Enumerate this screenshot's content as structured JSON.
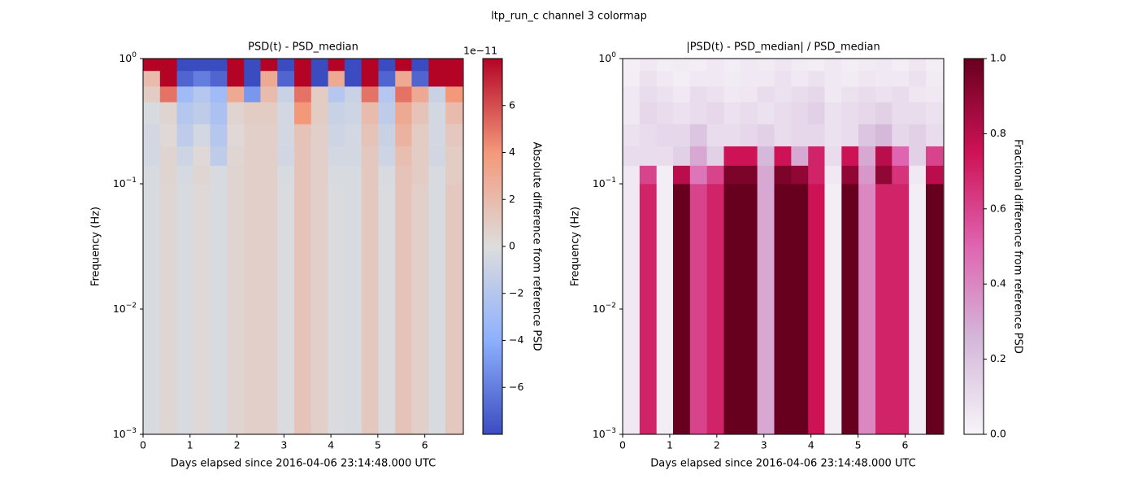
{
  "title": "ltp_run_c channel 3 colormap",
  "chart_data": [
    {
      "type": "heatmap",
      "title": "PSD(t) - PSD_median",
      "x_label": "Days elapsed since 2016-04-06 23:14:48.000 UTC",
      "y_label": "Frequency (Hz)",
      "xlim": [
        0,
        6.82
      ],
      "xticks": [
        0,
        1,
        2,
        3,
        4,
        5,
        6
      ],
      "ylim": [
        0.001,
        1
      ],
      "y_log": true,
      "yticks": [
        {
          "value": 0.001,
          "label": "10",
          "exponent": "−3"
        },
        {
          "value": 0.01,
          "label": "10",
          "exponent": "−2"
        },
        {
          "value": 0.1,
          "label": "10",
          "exponent": "−1"
        },
        {
          "value": 1,
          "label": "10",
          "exponent": "0"
        }
      ],
      "x_edges": [
        0,
        0.36,
        0.72,
        1.07,
        1.43,
        1.79,
        2.15,
        2.5,
        2.86,
        3.22,
        3.58,
        3.94,
        4.29,
        4.65,
        5.01,
        5.37,
        5.72,
        6.08,
        6.44,
        6.8
      ],
      "y_edges": [
        0.001,
        0.1,
        0.14,
        0.2,
        0.3,
        0.45,
        0.6,
        0.8,
        1
      ],
      "z": [
        [
          -0.3,
          0.4,
          -0.3,
          0.3,
          -0.3,
          0.5,
          0.8,
          0.8,
          -0.2,
          1.5,
          0.8,
          -0.2,
          -0.3,
          1.2,
          -0.2,
          1.5,
          0.8,
          -0.3,
          1.2
        ],
        [
          -0.3,
          0.5,
          -0.4,
          0.4,
          -0.3,
          0.5,
          0.8,
          0.8,
          -0.3,
          1.5,
          0.8,
          -0.3,
          -0.3,
          1.2,
          -0.3,
          1.5,
          1,
          -0.3,
          1
        ],
        [
          -0.5,
          0.5,
          -0.8,
          0.3,
          -1.5,
          0.4,
          0.8,
          0.8,
          -0.6,
          1.5,
          0.8,
          -0.5,
          -0.5,
          1.2,
          -0.8,
          1.8,
          1,
          -0.6,
          1
        ],
        [
          -0.5,
          0.3,
          -1.5,
          -0.5,
          -2,
          0.3,
          0.8,
          0.8,
          -0.5,
          1.5,
          0.8,
          -0.8,
          -0.5,
          1.5,
          -1,
          2.5,
          1,
          -0.5,
          1.2
        ],
        [
          -0.3,
          0.5,
          -2,
          -1.5,
          -2.5,
          0.5,
          1,
          1,
          -0.5,
          4,
          1,
          -1,
          -0.8,
          2,
          -1.5,
          3,
          1.5,
          -0.5,
          2
        ],
        [
          1,
          5,
          -3,
          -2,
          -3,
          3,
          -5,
          2,
          -1,
          5,
          1,
          -2,
          -1,
          5,
          -2,
          5,
          3,
          -1,
          4
        ],
        [
          2,
          8,
          -7,
          -6,
          -7,
          8,
          -8,
          3,
          -7,
          8,
          -8,
          3,
          -8,
          8,
          -7,
          3,
          -7,
          8,
          8
        ],
        [
          8,
          8,
          -8,
          -8,
          -8,
          8,
          -8,
          8,
          -8,
          8,
          -8,
          8,
          -8,
          8,
          -8,
          8,
          -8,
          8,
          8
        ]
      ],
      "colormap": [
        "#3b4cc0",
        "#8db0fe",
        "#dddddd",
        "#f4987a",
        "#b40426"
      ],
      "clim": [
        -8,
        8
      ],
      "cticks": [
        {
          "value": -6,
          "label": "−6"
        },
        {
          "value": -4,
          "label": "−4"
        },
        {
          "value": -2,
          "label": "−2"
        },
        0,
        2,
        4,
        6
      ],
      "c_offset": "1e−11",
      "c_label": "Absolute difference from reference PSD"
    },
    {
      "type": "heatmap",
      "title": "|PSD(t) - PSD_median| / PSD_median",
      "x_label": "Days elapsed since 2016-04-06 23:14:48.000 UTC",
      "y_label": "Frequency (Hz)",
      "xlim": [
        0,
        6.82
      ],
      "xticks": [
        0,
        1,
        2,
        3,
        4,
        5,
        6
      ],
      "ylim": [
        0.001,
        1
      ],
      "y_log": true,
      "yticks": [
        {
          "value": 0.001,
          "label": "10",
          "exponent": "−3"
        },
        {
          "value": 0.01,
          "label": "10",
          "exponent": "−2"
        },
        {
          "value": 0.1,
          "label": "10",
          "exponent": "−1"
        },
        {
          "value": 1,
          "label": "10",
          "exponent": "0"
        }
      ],
      "x_edges": [
        0,
        0.36,
        0.72,
        1.07,
        1.43,
        1.79,
        2.15,
        2.5,
        2.86,
        3.22,
        3.58,
        3.94,
        4.29,
        4.65,
        5.01,
        5.37,
        5.72,
        6.08,
        6.44,
        6.8
      ],
      "y_edges": [
        0.001,
        0.1,
        0.14,
        0.2,
        0.3,
        0.45,
        0.6,
        0.8,
        1
      ],
      "z": [
        [
          0.05,
          0.7,
          0.03,
          1,
          0.6,
          0.7,
          1,
          1,
          0.3,
          1,
          1,
          0.75,
          0.03,
          1,
          0.4,
          0.7,
          0.7,
          0.03,
          1
        ],
        [
          0.05,
          0.6,
          0.03,
          0.8,
          0.45,
          0.6,
          0.95,
          0.95,
          0.3,
          0.95,
          0.9,
          0.7,
          0.05,
          0.9,
          0.35,
          0.9,
          0.65,
          0.05,
          0.8
        ],
        [
          0.1,
          0.1,
          0.1,
          0.15,
          0.3,
          0.15,
          0.75,
          0.75,
          0.25,
          0.75,
          0.3,
          0.7,
          0.1,
          0.75,
          0.3,
          0.8,
          0.5,
          0.15,
          0.6
        ],
        [
          0.08,
          0.1,
          0.12,
          0.12,
          0.2,
          0.1,
          0.1,
          0.12,
          0.15,
          0.1,
          0.12,
          0.12,
          0.08,
          0.1,
          0.2,
          0.25,
          0.12,
          0.15,
          0.1
        ],
        [
          0.05,
          0.12,
          0.1,
          0.08,
          0.1,
          0.12,
          0.08,
          0.1,
          0.08,
          0.1,
          0.12,
          0.15,
          0.08,
          0.1,
          0.12,
          0.15,
          0.1,
          0.1,
          0.08
        ],
        [
          0.05,
          0.1,
          0.08,
          0.05,
          0.1,
          0.08,
          0.05,
          0.06,
          0.1,
          0.08,
          0.1,
          0.12,
          0.05,
          0.08,
          0.1,
          0.08,
          0.1,
          0.06,
          0.05
        ],
        [
          0.03,
          0.08,
          0.05,
          0.03,
          0.05,
          0.05,
          0.04,
          0.05,
          0.05,
          0.08,
          0.05,
          0.08,
          0.05,
          0.04,
          0.06,
          0.05,
          0.05,
          0.08,
          0.04
        ],
        [
          0.02,
          0.05,
          0.03,
          0.04,
          0.03,
          0.05,
          0.03,
          0.05,
          0.04,
          0.06,
          0.04,
          0.03,
          0.05,
          0.03,
          0.04,
          0.05,
          0.03,
          0.06,
          0.03
        ]
      ],
      "colormap": [
        "#f7f4f9",
        "#d4b9da",
        "#df65b0",
        "#ce1256",
        "#67001f"
      ],
      "clim": [
        0,
        1
      ],
      "cticks": [
        {
          "value": 0,
          "label": "0.0"
        },
        {
          "value": 0.2,
          "label": "0.2"
        },
        {
          "value": 0.4,
          "label": "0.4"
        },
        {
          "value": 0.6,
          "label": "0.6"
        },
        {
          "value": 0.8,
          "label": "0.8"
        },
        {
          "value": 1,
          "label": "1.0"
        }
      ],
      "c_label": "Fractional difference from reference PSD"
    }
  ]
}
